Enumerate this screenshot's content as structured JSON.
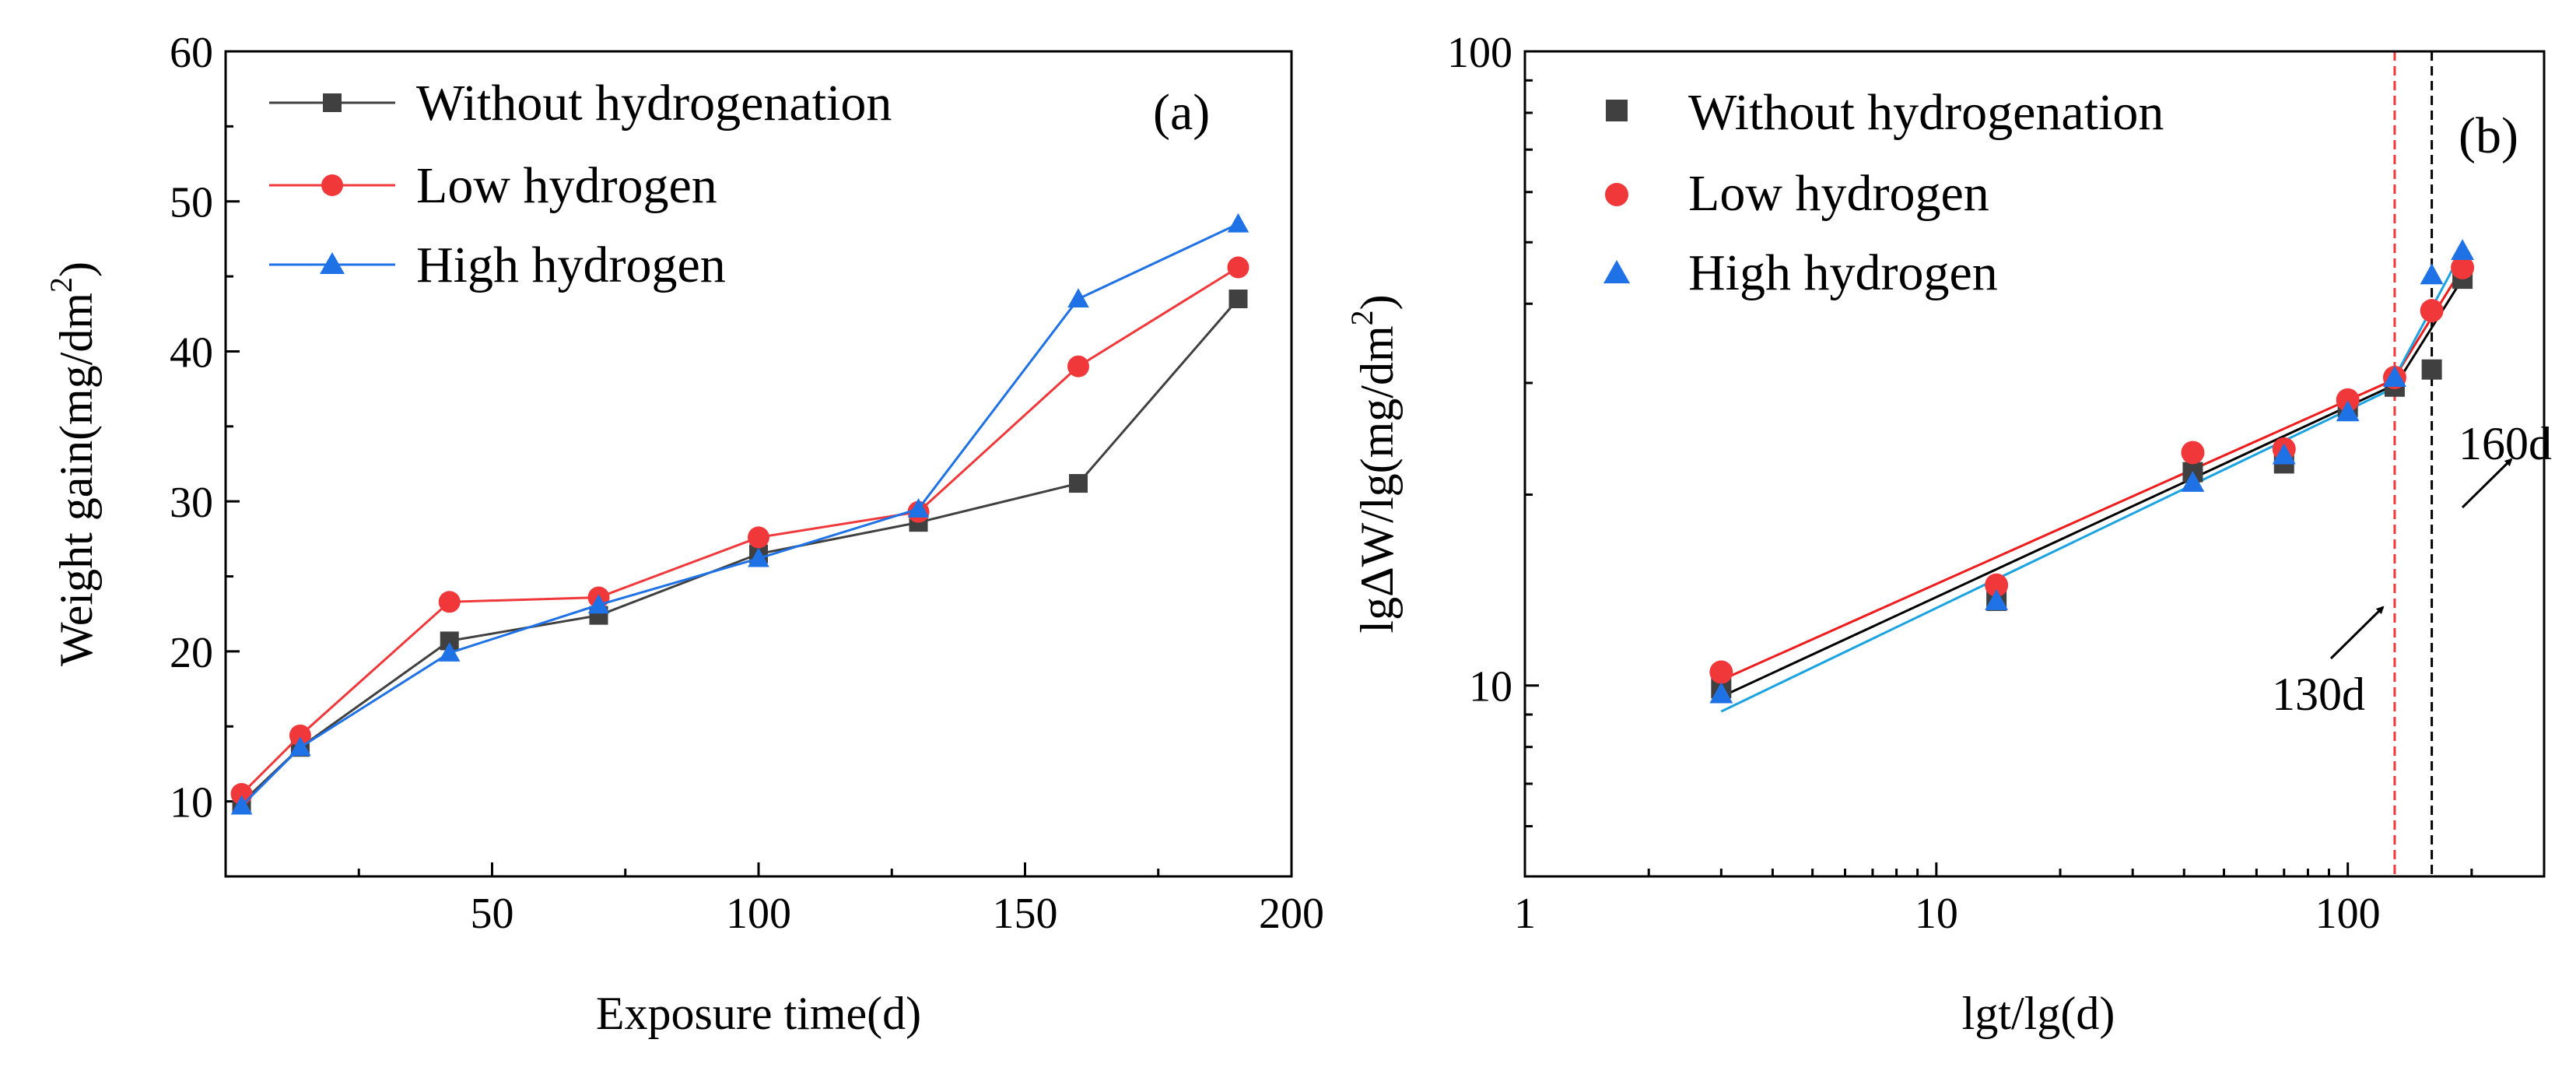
{
  "chart_data": [
    {
      "type": "line",
      "panel_label": "(a)",
      "xlabel": "Exposure time(d)",
      "ylabel": {
        "main": "Weight gain(mg/dm",
        "sup": "2",
        "tail": ")"
      },
      "xlim": [
        0,
        200
      ],
      "ylim": [
        5,
        60
      ],
      "x_ticks": [
        50,
        100,
        150,
        200
      ],
      "x_tick_labels": [
        "50",
        "100",
        "150",
        "200"
      ],
      "x_minor_ticks": [
        25,
        75,
        125,
        175
      ],
      "y_ticks": [
        10,
        20,
        30,
        40,
        50,
        60
      ],
      "y_tick_labels": [
        "10",
        "20",
        "30",
        "40",
        "50",
        "60"
      ],
      "y_minor_ticks": [
        15,
        25,
        35,
        45,
        55
      ],
      "legend_position": "top-left",
      "series": [
        {
          "name": "Without hydrogenation",
          "color": "#404040",
          "marker": "square",
          "x": [
            3,
            14,
            42,
            70,
            100,
            130,
            160,
            190
          ],
          "y": [
            9.9,
            13.6,
            20.7,
            22.4,
            26.5,
            28.6,
            31.2,
            43.5
          ]
        },
        {
          "name": "Low hydrogen",
          "color": "#f0383a",
          "marker": "circle",
          "x": [
            3,
            14,
            42,
            70,
            100,
            130,
            160,
            190
          ],
          "y": [
            10.5,
            14.4,
            23.3,
            23.6,
            27.6,
            29.3,
            39.0,
            45.6
          ]
        },
        {
          "name": "High hydrogen",
          "color": "#1f72e6",
          "marker": "triangle",
          "x": [
            3,
            14,
            42,
            70,
            100,
            130,
            160,
            190
          ],
          "y": [
            9.7,
            13.6,
            19.9,
            23.1,
            26.2,
            29.5,
            43.5,
            48.5
          ]
        }
      ]
    },
    {
      "type": "scatter",
      "panel_label": "(b)",
      "xlabel": "lgt/lg(d)",
      "ylabel": {
        "main": "lgΔW/lg(mg/dm",
        "sup": "2",
        "tail": ")"
      },
      "xscale": "log",
      "yscale": "log",
      "xlim": [
        1,
        300
      ],
      "ylim": [
        5,
        100
      ],
      "x_ticks": [
        1,
        10,
        100
      ],
      "x_tick_labels": [
        "1",
        "10",
        "100"
      ],
      "y_ticks": [
        10,
        100
      ],
      "y_tick_labels": [
        "10",
        "100"
      ],
      "legend_position": "top-left",
      "series": [
        {
          "name": "Without hydrogenation",
          "color": "#404040",
          "marker": "square",
          "x": [
            3,
            14,
            42,
            70,
            100,
            130,
            160,
            190
          ],
          "y": [
            9.9,
            13.6,
            21.7,
            22.4,
            27.5,
            29.6,
            31.5,
            43.8
          ]
        },
        {
          "name": "Low hydrogen",
          "color": "#f0383a",
          "marker": "circle",
          "x": [
            3,
            14,
            42,
            70,
            100,
            130,
            160,
            190
          ],
          "y": [
            10.5,
            14.4,
            23.3,
            23.6,
            28.2,
            30.6,
            39.0,
            45.6
          ]
        },
        {
          "name": "High hydrogen",
          "color": "#1f72e6",
          "marker": "triangle",
          "x": [
            3,
            14,
            42,
            70,
            100,
            130,
            160,
            190
          ],
          "y": [
            9.7,
            13.6,
            20.9,
            23.1,
            27.0,
            30.6,
            44.4,
            48.5
          ]
        }
      ],
      "fit_lines": [
        {
          "series": "Without hydrogenation",
          "color": "#000000",
          "x": [
            3,
            130
          ],
          "y": [
            9.6,
            29.8
          ]
        },
        {
          "series": "Low hydrogen",
          "color": "#ee1c1c",
          "x": [
            3,
            130
          ],
          "y": [
            10.2,
            30.4
          ]
        },
        {
          "series": "High hydrogen",
          "color": "#1aa3e0",
          "x": [
            3,
            130
          ],
          "y": [
            9.1,
            29.5
          ]
        },
        {
          "series": "Without hydrogenation",
          "color": "#000000",
          "x": [
            130,
            190
          ],
          "y": [
            29.6,
            43.8
          ]
        },
        {
          "series": "Low hydrogen",
          "color": "#ee1c1c",
          "x": [
            130,
            190
          ],
          "y": [
            30.6,
            45.6
          ]
        },
        {
          "series": "High hydrogen",
          "color": "#1aa3e0",
          "x": [
            130,
            190
          ],
          "y": [
            30.6,
            48.5
          ]
        }
      ],
      "vlines": [
        {
          "x": 130,
          "color": "#f0383a",
          "style": "dashed"
        },
        {
          "x": 160,
          "color": "#000000",
          "style": "dashed"
        }
      ],
      "annotations": [
        {
          "text": "130d",
          "target_x": 130
        },
        {
          "text": "160d",
          "target_x": 160
        }
      ]
    }
  ]
}
